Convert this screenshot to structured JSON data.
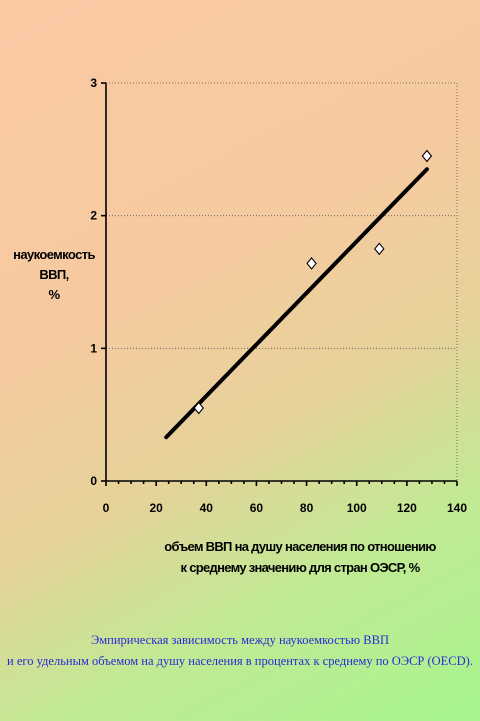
{
  "chart_data": {
    "type": "scatter",
    "xlabel_lines": [
      "объем ВВП на душу населения по отношению",
      "к среднему значению для стран ОЭСР, %"
    ],
    "ylabel_lines": [
      "наукоемкость",
      "ВВП,",
      "%"
    ],
    "xlim": [
      0,
      140
    ],
    "ylim": [
      0,
      3
    ],
    "x_ticks": [
      "0",
      "20",
      "40",
      "60",
      "80",
      "100",
      "120",
      "140"
    ],
    "y_ticks": [
      "0",
      "1",
      "2",
      "3"
    ],
    "grid": "horizontal dotted",
    "points": [
      {
        "x": 37,
        "y": 0.55
      },
      {
        "x": 82,
        "y": 1.64
      },
      {
        "x": 109,
        "y": 1.75
      },
      {
        "x": 128,
        "y": 2.45
      }
    ],
    "trendline": {
      "x": [
        24,
        128
      ],
      "y": [
        0.33,
        2.35
      ]
    },
    "colors": {
      "marker_fill": "#ffffff",
      "marker_stroke": "#000000",
      "trendline": "#000000"
    }
  },
  "caption": {
    "line1": "Эмпирическая зависимость между наукоемкостью ВВП",
    "line2": "и его удельным объемом на душу населения в процентах к среднему по ОЭСР (OECD)."
  }
}
